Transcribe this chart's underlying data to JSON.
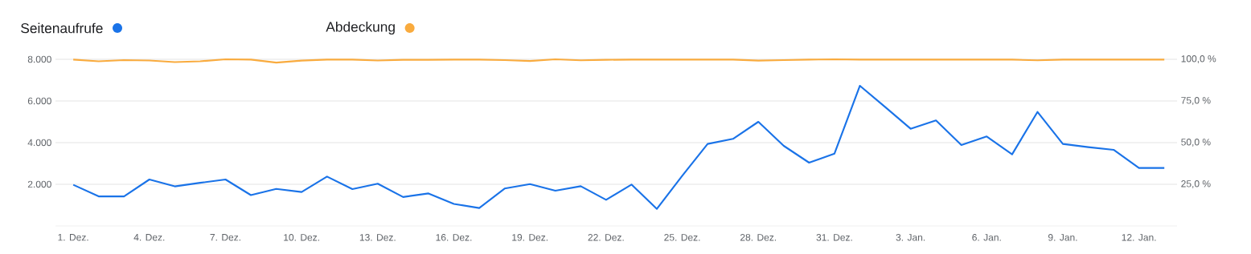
{
  "chart_data": {
    "type": "line",
    "categories": [
      "1. Dez.",
      null,
      null,
      "4. Dez.",
      null,
      null,
      "7. Dez.",
      null,
      null,
      "10. Dez.",
      null,
      null,
      "13. Dez.",
      null,
      null,
      "16. Dez.",
      null,
      null,
      "19. Dez.",
      null,
      null,
      "22. Dez.",
      null,
      null,
      "25. Dez.",
      null,
      null,
      "28. Dez.",
      null,
      null,
      "31. Dez.",
      null,
      null,
      "3. Jan.",
      null,
      null,
      "6. Jan.",
      null,
      null,
      "9. Jan.",
      null,
      null,
      "12. Jan.",
      null
    ],
    "series": [
      {
        "name": "Seitenaufrufe",
        "color": "#1a73e8",
        "values": [
          1975,
          1420,
          1420,
          2230,
          1900,
          2070,
          2230,
          1480,
          1780,
          1630,
          2370,
          1770,
          2030,
          1390,
          1560,
          1060,
          860,
          1795,
          2010,
          1690,
          1910,
          1256,
          1987,
          820,
          2410,
          3936,
          4180,
          5000,
          3846,
          3038,
          3474,
          6730,
          5705,
          4667,
          5064,
          3885,
          4295,
          3436,
          5474,
          3936,
          3782,
          3654,
          2782,
          2782
        ]
      },
      {
        "name": "Abdeckung",
        "color": "#f9ab3e",
        "axis": "y2",
        "values": [
          99.8,
          98.8,
          99.5,
          99.3,
          98.3,
          98.8,
          100,
          99.8,
          98,
          99.2,
          99.8,
          99.8,
          99.3,
          99.7,
          99.7,
          99.8,
          99.8,
          99.5,
          99,
          100,
          99.4,
          99.7,
          99.8,
          99.8,
          99.8,
          99.8,
          99.8,
          99.2,
          99.5,
          99.8,
          100,
          99.8,
          99.8,
          99.8,
          99.8,
          99.8,
          99.8,
          99.8,
          99.4,
          99.8,
          99.8,
          99.8,
          99.8,
          99.8
        ]
      }
    ],
    "ylim": [
      0,
      8000
    ],
    "yticks": [
      {
        "value": 2000,
        "label": "2.000"
      },
      {
        "value": 4000,
        "label": "4.000"
      },
      {
        "value": 6000,
        "label": "6.000"
      },
      {
        "value": 8000,
        "label": "8.000"
      }
    ],
    "y2lim": [
      0,
      100
    ],
    "y2ticks": [
      {
        "value": 25,
        "label": "25,0 %"
      },
      {
        "value": 50,
        "label": "50,0 %"
      },
      {
        "value": 75,
        "label": "75,0 %"
      },
      {
        "value": 100,
        "label": "100,0 %"
      }
    ],
    "grid": "y",
    "legend": "top left"
  }
}
